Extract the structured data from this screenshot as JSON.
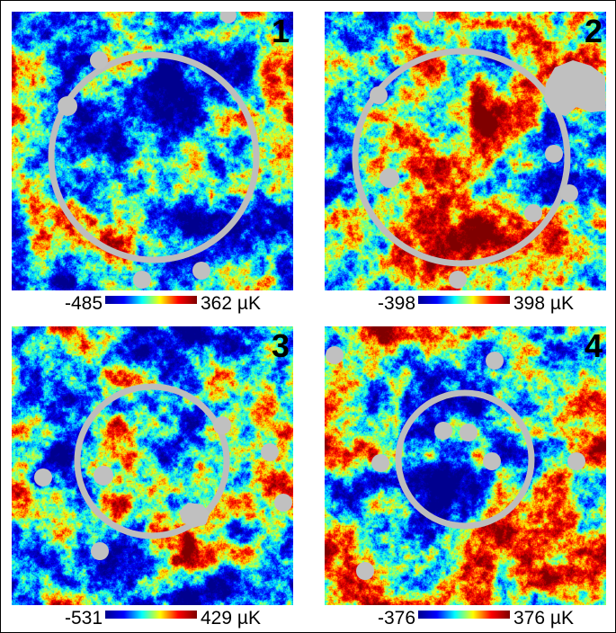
{
  "colors": {
    "colormap": [
      "#00008f",
      "#0000ff",
      "#00ffff",
      "#ffff00",
      "#ff0000",
      "#800000"
    ],
    "mask_gray": "#c0c0c0",
    "ring_gray": "#bdbdbd"
  },
  "panels": [
    {
      "label": "1",
      "cb_min": "-485",
      "cb_max": "362 µK",
      "center_tendency": "cold",
      "seed": 11
    },
    {
      "label": "2",
      "cb_min": "-398",
      "cb_max": "398 µK",
      "center_tendency": "hot",
      "seed": 23
    },
    {
      "label": "3",
      "cb_min": "-531",
      "cb_max": "429 µK",
      "center_tendency": "neutral",
      "seed": 37
    },
    {
      "label": "4",
      "cb_min": "-376",
      "cb_max": "376 µK",
      "center_tendency": "cold",
      "seed": 51
    }
  ]
}
